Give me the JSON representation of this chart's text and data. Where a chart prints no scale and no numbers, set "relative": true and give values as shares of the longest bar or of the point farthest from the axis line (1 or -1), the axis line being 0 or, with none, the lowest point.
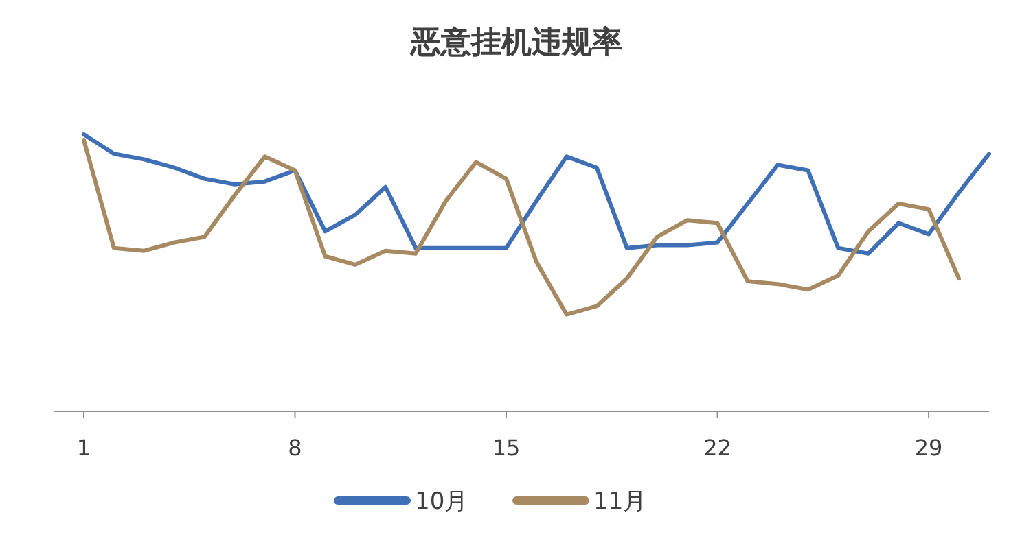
{
  "chart_data": {
    "type": "line",
    "title": "恶意挂机违规率",
    "relative": true,
    "legend": "bottom",
    "x": [
      1,
      2,
      3,
      4,
      5,
      6,
      7,
      8,
      9,
      10,
      11,
      12,
      13,
      14,
      15,
      16,
      17,
      18,
      19,
      20,
      21,
      22,
      23,
      24,
      25,
      26,
      27,
      28,
      29,
      30,
      31
    ],
    "xlim": [
      0,
      31
    ],
    "xticks": [
      1,
      8,
      15,
      22,
      29
    ],
    "series": [
      {
        "name": "10月",
        "color": "#3f6fb5",
        "values": [
          1.0,
          0.93,
          0.91,
          0.88,
          0.84,
          0.82,
          0.83,
          0.87,
          0.65,
          0.71,
          0.81,
          0.59,
          0.59,
          0.59,
          0.59,
          0.76,
          0.92,
          0.88,
          0.59,
          0.6,
          0.6,
          0.61,
          0.75,
          0.89,
          0.87,
          0.59,
          0.57,
          0.68,
          0.64,
          0.79,
          0.93
        ]
      },
      {
        "name": "11月",
        "color": "#a88a62",
        "x": [
          1,
          2,
          3,
          4,
          5,
          6,
          7,
          8,
          9,
          10,
          11,
          12,
          13,
          14,
          15,
          16,
          17,
          18,
          19,
          20,
          21,
          22,
          23,
          24,
          25,
          26,
          27,
          28,
          29,
          30
        ],
        "values": [
          0.98,
          0.59,
          0.58,
          0.61,
          0.63,
          0.78,
          0.92,
          0.87,
          0.56,
          0.53,
          0.58,
          0.57,
          0.76,
          0.9,
          0.84,
          0.54,
          0.35,
          0.38,
          0.48,
          0.63,
          0.69,
          0.68,
          0.47,
          0.46,
          0.44,
          0.49,
          0.65,
          0.75,
          0.73,
          0.48
        ]
      }
    ]
  }
}
